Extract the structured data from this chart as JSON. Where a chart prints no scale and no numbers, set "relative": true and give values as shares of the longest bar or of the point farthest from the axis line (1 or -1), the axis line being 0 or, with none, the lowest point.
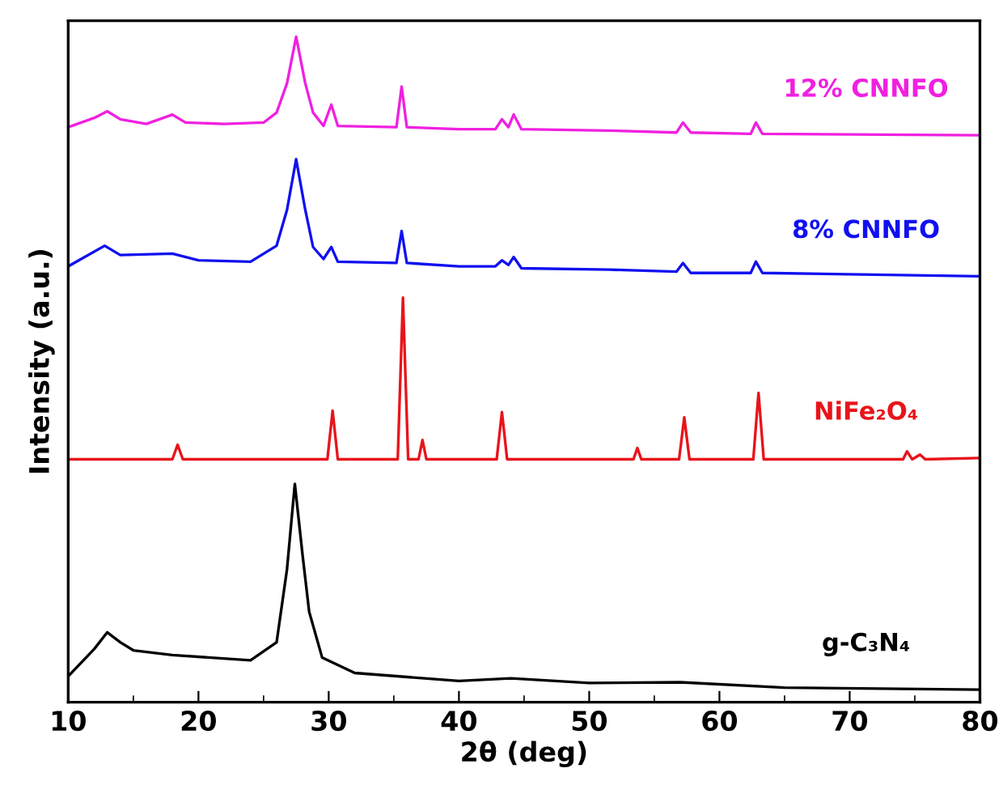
{
  "chart_data": {
    "type": "line",
    "relative": true,
    "xlabel": "2θ (deg)",
    "ylabel": "Intensity (a.u.)",
    "xlim": [
      10,
      80
    ],
    "xticks": [
      10,
      {
        "value": 15,
        "label": null
      },
      20,
      {
        "value": 25,
        "label": null
      },
      30,
      {
        "value": 35,
        "label": null
      },
      40,
      {
        "value": 45,
        "label": null
      },
      50,
      {
        "value": 55,
        "label": null
      },
      60,
      {
        "value": 65,
        "label": null
      },
      70,
      {
        "value": 75,
        "label": null
      },
      80
    ],
    "grid": false,
    "legend": false,
    "line_style": "solid",
    "marker": "none",
    "series": [
      {
        "name": "12% CNNFO",
        "color": "#f020e0",
        "x": [
          10,
          12,
          13,
          14,
          16,
          18,
          19,
          22,
          25,
          26,
          26.8,
          27.5,
          28.2,
          28.8,
          29.6,
          30.2,
          30.7,
          35.2,
          35.6,
          36,
          40,
          42.8,
          43.3,
          43.8,
          44.2,
          44.8,
          51.5,
          56.7,
          57.2,
          57.8,
          62.4,
          62.8,
          63.3,
          80
        ],
        "values": [
          0.864,
          0.878,
          0.888,
          0.876,
          0.869,
          0.883,
          0.871,
          0.869,
          0.871,
          0.886,
          0.93,
          1.0,
          0.93,
          0.886,
          0.866,
          0.898,
          0.866,
          0.864,
          0.925,
          0.864,
          0.861,
          0.861,
          0.876,
          0.864,
          0.883,
          0.861,
          0.859,
          0.856,
          0.871,
          0.856,
          0.854,
          0.871,
          0.854,
          0.852
        ]
      },
      {
        "name": "8% CNNFO",
        "color": "#1010f0",
        "x": [
          10,
          12.8,
          14,
          18,
          20,
          24,
          26,
          26.8,
          27.5,
          28.2,
          28.8,
          29.6,
          30.2,
          30.7,
          35.2,
          35.6,
          36,
          40,
          42.8,
          43.3,
          43.8,
          44.2,
          44.8,
          51.5,
          56.7,
          57.2,
          57.8,
          62.4,
          62.8,
          63.3,
          80
        ],
        "values": [
          0.655,
          0.686,
          0.672,
          0.674,
          0.664,
          0.662,
          0.686,
          0.74,
          0.816,
          0.74,
          0.684,
          0.666,
          0.684,
          0.662,
          0.66,
          0.708,
          0.66,
          0.655,
          0.655,
          0.664,
          0.657,
          0.669,
          0.652,
          0.65,
          0.647,
          0.66,
          0.645,
          0.645,
          0.662,
          0.645,
          0.64
        ]
      },
      {
        "name": "NiFe₂O₄",
        "color": "#e8141b",
        "x": [
          10,
          18.0,
          18.4,
          18.8,
          29.9,
          30.3,
          30.7,
          35.3,
          35.7,
          36.1,
          36.9,
          37.2,
          37.5,
          42.9,
          43.3,
          43.7,
          53.4,
          53.7,
          54.0,
          56.9,
          57.3,
          57.7,
          62.6,
          63.0,
          63.4,
          74.1,
          74.4,
          74.8,
          75.4,
          75.8,
          80
        ],
        "values": [
          0.365,
          0.365,
          0.387,
          0.365,
          0.365,
          0.438,
          0.365,
          0.365,
          0.608,
          0.365,
          0.365,
          0.394,
          0.365,
          0.365,
          0.436,
          0.365,
          0.365,
          0.382,
          0.365,
          0.365,
          0.428,
          0.365,
          0.365,
          0.465,
          0.365,
          0.365,
          0.377,
          0.365,
          0.372,
          0.365,
          0.367
        ]
      },
      {
        "name": "g-C₃N₄",
        "color": "#000000",
        "x": [
          10,
          12,
          13,
          14,
          15,
          18,
          24,
          26,
          26.8,
          27.4,
          28,
          28.5,
          29.5,
          32,
          40,
          44,
          50,
          57,
          65,
          80
        ],
        "values": [
          0.039,
          0.08,
          0.105,
          0.09,
          0.078,
          0.071,
          0.063,
          0.09,
          0.2,
          0.328,
          0.22,
          0.136,
          0.067,
          0.044,
          0.032,
          0.036,
          0.029,
          0.03,
          0.022,
          0.019
        ]
      }
    ]
  }
}
